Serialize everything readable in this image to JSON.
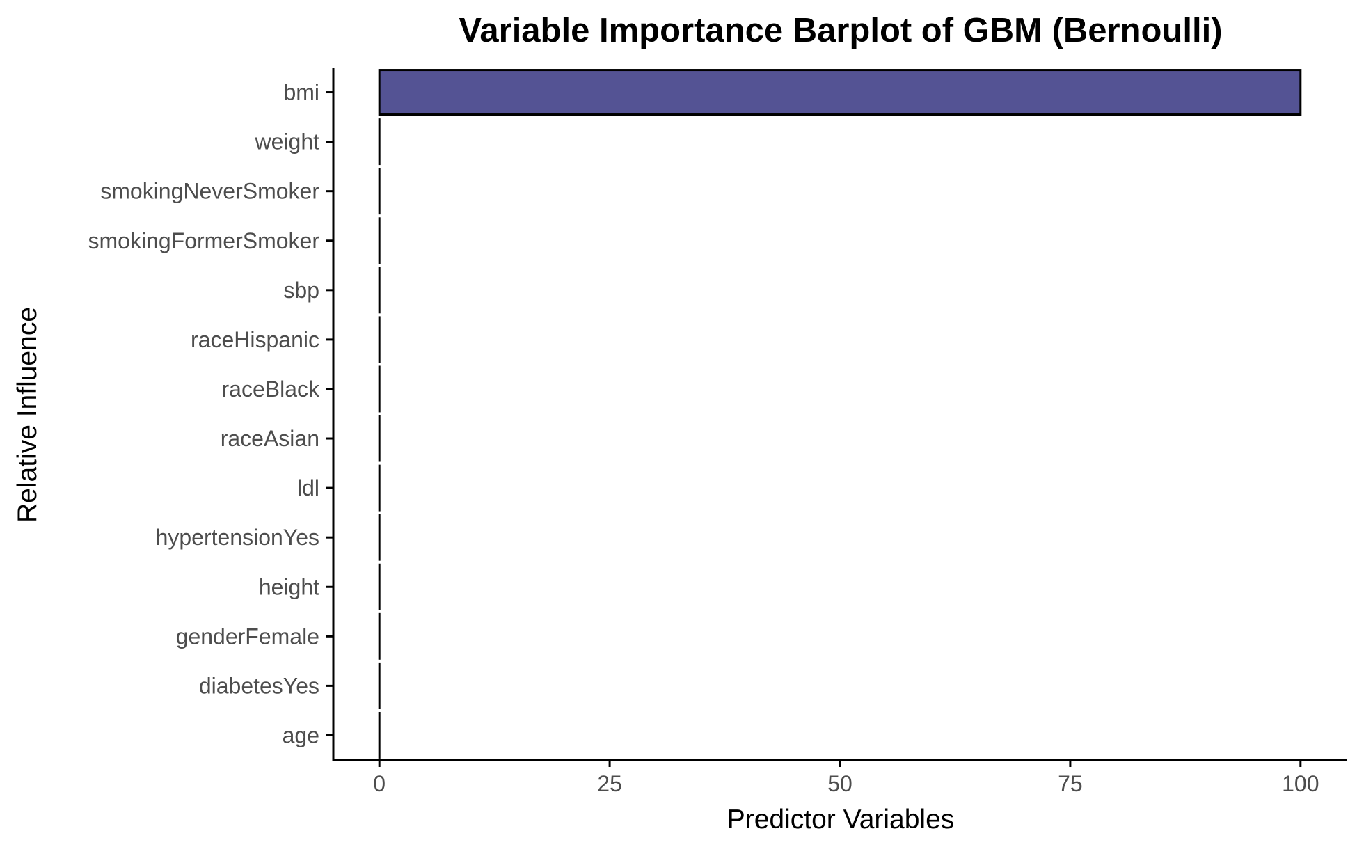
{
  "chart_data": {
    "type": "bar",
    "orientation": "horizontal",
    "title": "Variable Importance Barplot of GBM (Bernoulli)",
    "xlabel": "Predictor Variables",
    "ylabel": "Relative Influence",
    "categories": [
      "bmi",
      "weight",
      "smokingNeverSmoker",
      "smokingFormerSmoker",
      "sbp",
      "raceHispanic",
      "raceBlack",
      "raceAsian",
      "ldl",
      "hypertensionYes",
      "height",
      "genderFemale",
      "diabetesYes",
      "age"
    ],
    "values": [
      100,
      0,
      0,
      0,
      0,
      0,
      0,
      0,
      0,
      0,
      0,
      0,
      0,
      0
    ],
    "xlim": [
      -5,
      105
    ],
    "xticks": [
      0,
      25,
      50,
      75,
      100
    ],
    "xtick_labels": [
      "0",
      "25",
      "50",
      "75",
      "100"
    ],
    "grid": false,
    "legend": "none",
    "bar_fill": "#545394",
    "bar_outline": "#000000"
  }
}
